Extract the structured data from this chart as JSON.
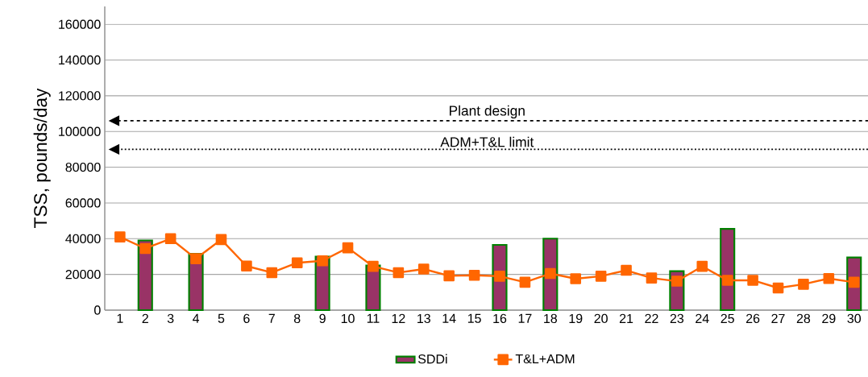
{
  "chart_data": {
    "type": "bar",
    "ylabel": "TSS, pounds/day",
    "categories": [
      "1",
      "2",
      "3",
      "4",
      "5",
      "6",
      "7",
      "8",
      "9",
      "10",
      "11",
      "12",
      "13",
      "14",
      "15",
      "16",
      "17",
      "18",
      "19",
      "20",
      "21",
      "22",
      "23",
      "24",
      "25",
      "26",
      "27",
      "28",
      "29",
      "30"
    ],
    "series": [
      {
        "name": "SDDi",
        "color": "#993366",
        "values": [
          null,
          39000,
          null,
          31500,
          null,
          null,
          null,
          null,
          30000,
          null,
          25000,
          null,
          null,
          null,
          null,
          36500,
          null,
          40000,
          null,
          null,
          null,
          null,
          21800,
          null,
          45500,
          null,
          null,
          null,
          null,
          29500
        ]
      },
      {
        "name": "T&L+ADM",
        "type": "line",
        "color": "#ff6600",
        "marker": "square",
        "values": [
          41000,
          34500,
          40000,
          28800,
          39500,
          24700,
          21000,
          26500,
          27600,
          34900,
          24500,
          21000,
          23000,
          19200,
          19500,
          19000,
          15600,
          20500,
          17600,
          19000,
          22300,
          18000,
          16200,
          24500,
          16700,
          16700,
          12400,
          14500,
          17700,
          15600
        ]
      }
    ],
    "ylim": [
      0,
      170000
    ],
    "yticks": [
      0,
      20000,
      40000,
      60000,
      80000,
      100000,
      120000,
      140000,
      160000
    ],
    "grid": "y",
    "legend": "bottom",
    "ref_lines": [
      {
        "axis": "y",
        "value": 106000,
        "label": "Plant design",
        "color": "#000000",
        "line_style": "dashed"
      },
      {
        "axis": "y",
        "value": 90000,
        "label": "ADM+T&L limit",
        "color": "#000000",
        "line_style": "dotted"
      }
    ]
  }
}
